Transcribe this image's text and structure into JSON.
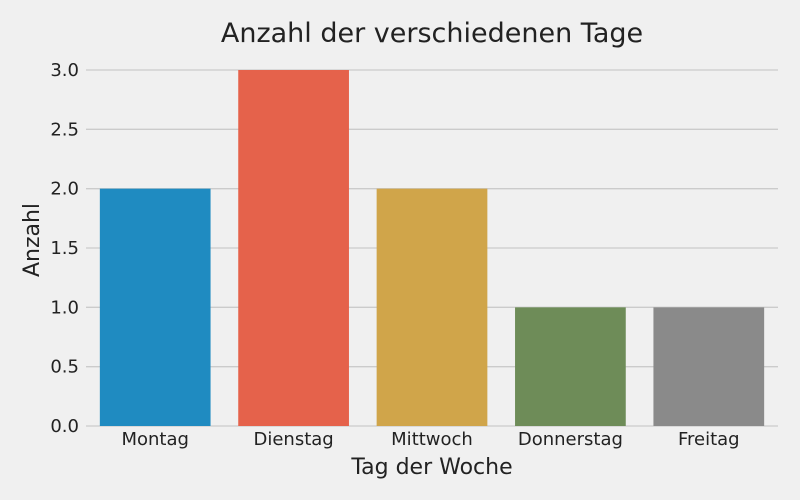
{
  "chart_data": {
    "type": "bar",
    "title": "Anzahl der verschiedenen Tage",
    "xlabel": "Tag der Woche",
    "ylabel": "Anzahl",
    "categories": [
      "Montag",
      "Dienstag",
      "Mittwoch",
      "Donnerstag",
      "Freitag"
    ],
    "values": [
      2,
      3,
      2,
      1,
      1
    ],
    "ylim": [
      0,
      3.0
    ],
    "yticks": [
      "0.0",
      "0.5",
      "1.0",
      "1.5",
      "2.0",
      "2.5",
      "3.0"
    ],
    "grid": "horizontal",
    "colors": [
      "#1f8bc1",
      "#e5624b",
      "#d0a54a",
      "#6e8c58",
      "#8a8a8a"
    ],
    "background": "#f0f0f0"
  }
}
